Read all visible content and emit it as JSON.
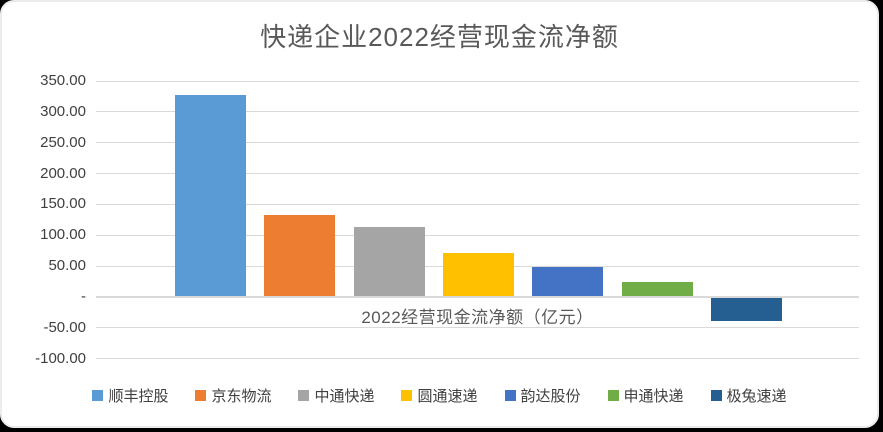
{
  "title": "快递企业2022经营现金流净额",
  "chart_data": {
    "type": "bar",
    "title": "快递企业2022经营现金流净额",
    "categories": [
      "顺丰控股",
      "京东物流",
      "中通快递",
      "圆通速递",
      "韵达股份",
      "申通快递",
      "极兔速递"
    ],
    "values": [
      327,
      133,
      114,
      72,
      49,
      25,
      -39
    ],
    "series_colors": [
      "#5B9BD5",
      "#ED7D31",
      "#A5A5A5",
      "#FFC000",
      "#4472C4",
      "#70AD47",
      "#255E91"
    ],
    "xlabel": "2022经营现金流净额（亿元）",
    "ylabel": "",
    "ylim": [
      -100,
      350
    ],
    "ytick_step": 50,
    "yticks": [
      {
        "value": 350,
        "label": "350.00"
      },
      {
        "value": 300,
        "label": "300.00"
      },
      {
        "value": 250,
        "label": "250.00"
      },
      {
        "value": 200,
        "label": "200.00"
      },
      {
        "value": 150,
        "label": "150.00"
      },
      {
        "value": 100,
        "label": "100.00"
      },
      {
        "value": 50,
        "label": "50.00"
      },
      {
        "value": 0,
        "label": "-"
      },
      {
        "value": -50,
        "label": "-50.00"
      },
      {
        "value": -100,
        "label": "-100.00"
      }
    ],
    "grid": true,
    "legend_position": "bottom",
    "colors": {
      "background": "#FFFFFF",
      "gridline": "#D9D9D9",
      "title_text": "#595959",
      "axis_text": "#404040",
      "legend_text": "#404040"
    }
  }
}
